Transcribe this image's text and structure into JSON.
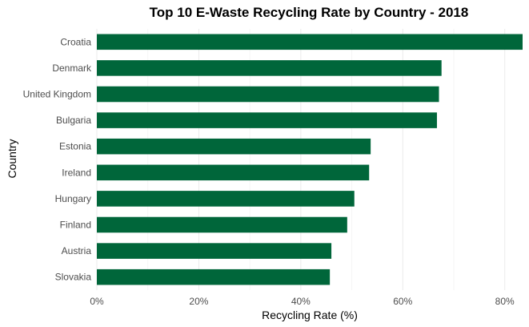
{
  "chart_data": {
    "type": "bar",
    "orientation": "horizontal",
    "title": "Top 10 E-Waste Recycling Rate by Country - 2018",
    "xlabel": "Recycling Rate (%)",
    "ylabel": "Country",
    "categories": [
      "Croatia",
      "Denmark",
      "United Kingdom",
      "Bulgaria",
      "Estonia",
      "Ireland",
      "Hungary",
      "Finland",
      "Austria",
      "Slovakia"
    ],
    "values": [
      83.5,
      67.6,
      67.1,
      66.7,
      53.7,
      53.4,
      50.5,
      49.1,
      46.0,
      45.7
    ],
    "xlim": [
      0,
      83.5
    ],
    "xticks": [
      0,
      20,
      40,
      60,
      80
    ],
    "xtick_labels": [
      "0%",
      "20%",
      "40%",
      "60%",
      "80%"
    ],
    "grid": true,
    "colors": {
      "bar": "#00663a"
    }
  }
}
